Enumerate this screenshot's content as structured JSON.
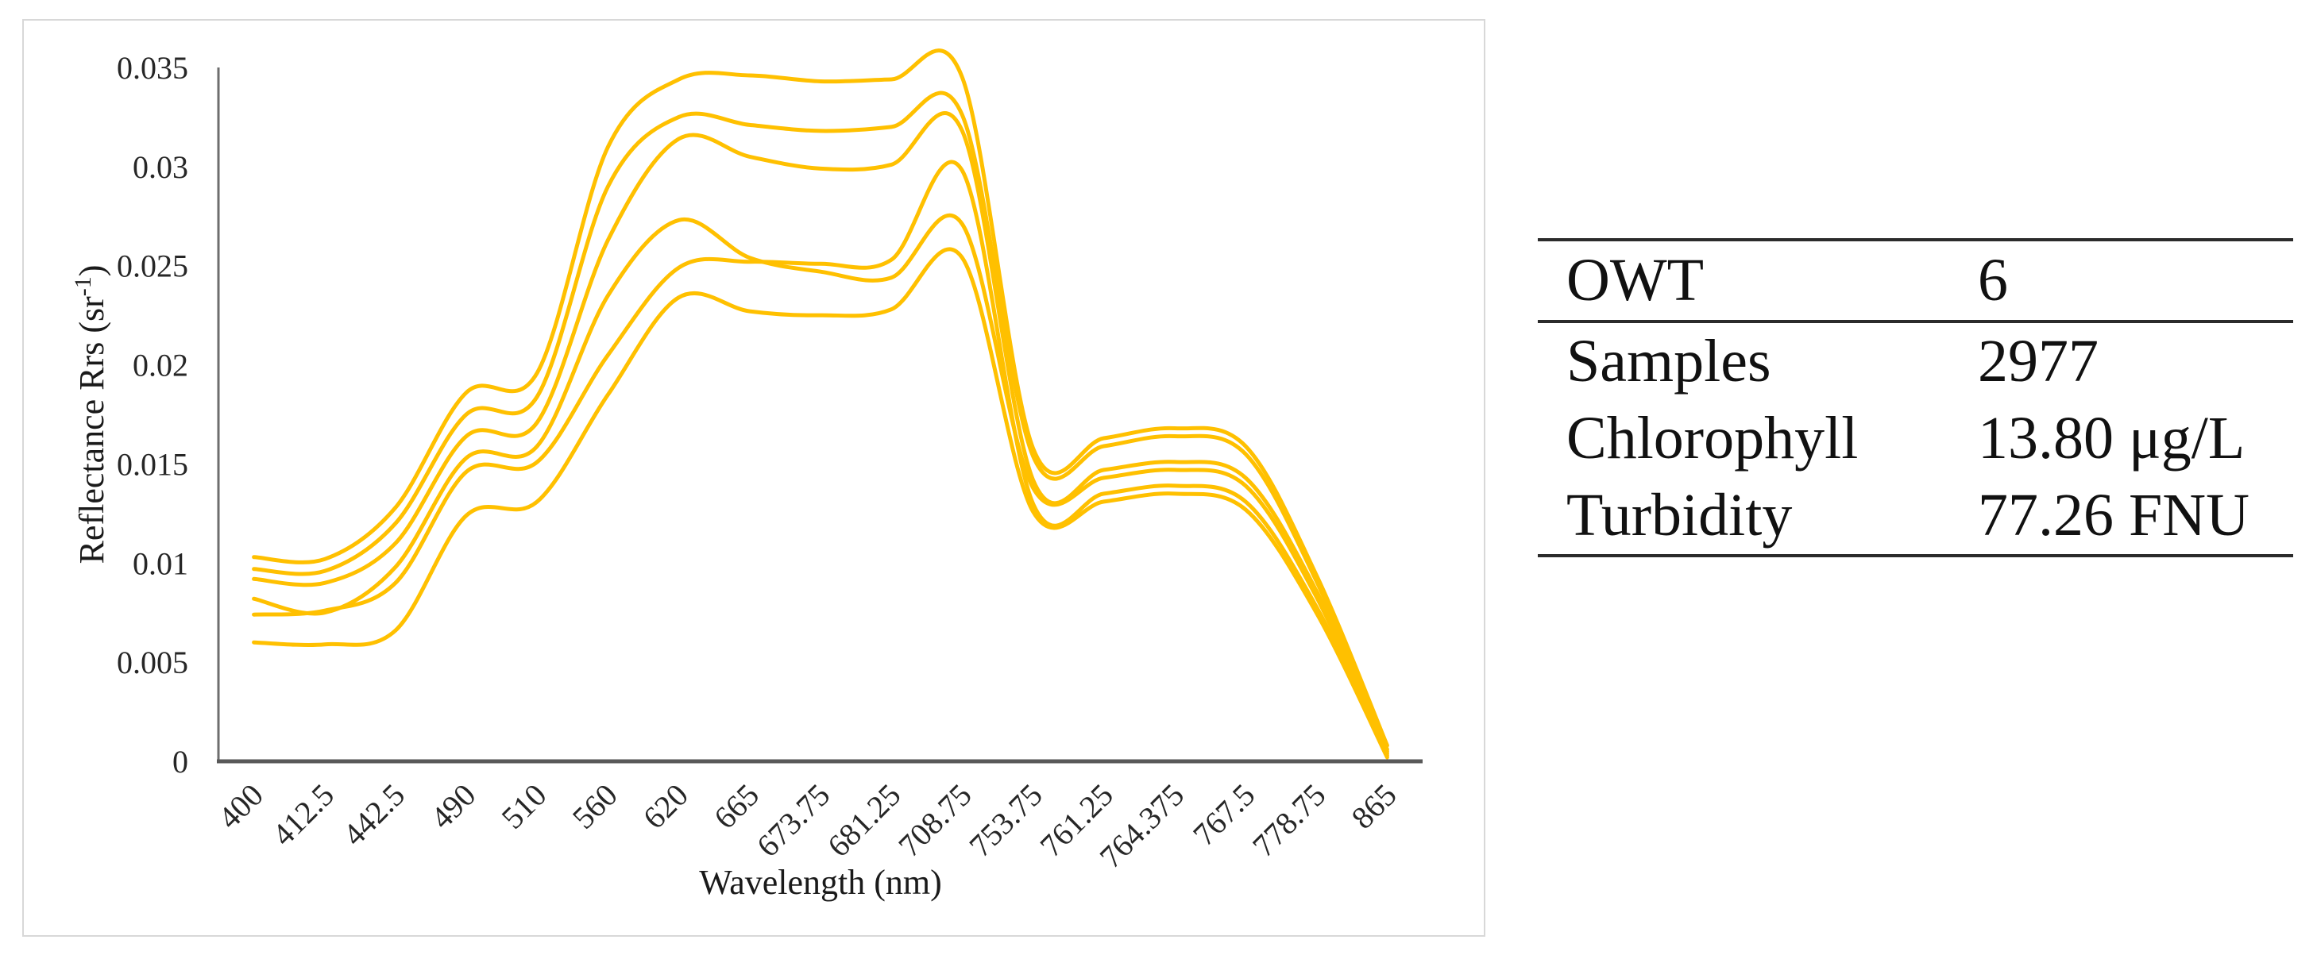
{
  "chart_data": {
    "type": "line",
    "title": "",
    "xlabel": "Wavelength (nm)",
    "ylabel": "Reflectance Rrs (sr⁻¹)",
    "ylabel_parts": {
      "base": "Reflectance Rrs (sr",
      "sup": "-1",
      "end": ")"
    },
    "categories": [
      "400",
      "412.5",
      "442.5",
      "490",
      "510",
      "560",
      "620",
      "665",
      "673.75",
      "681.25",
      "708.75",
      "753.75",
      "761.25",
      "764.375",
      "767.5",
      "778.75",
      "865"
    ],
    "yticks": [
      "0",
      "0.005",
      "0.01",
      "0.015",
      "0.02",
      "0.025",
      "0.03",
      "0.035"
    ],
    "ylim": [
      0,
      0.035
    ],
    "grid": false,
    "legend": false,
    "line_color": "#FFC000",
    "y_axis_color": "#6e6e6e",
    "x_axis_color": "#595959",
    "series": [
      {
        "values": [
          0.0103,
          0.0102,
          0.0128,
          0.0186,
          0.0196,
          0.031,
          0.0344,
          0.0346,
          0.0343,
          0.0344,
          0.0345,
          0.0158,
          0.0163,
          0.0168,
          0.0159,
          0.0094,
          0.0008
        ]
      },
      {
        "values": [
          0.0097,
          0.0096,
          0.012,
          0.0175,
          0.0184,
          0.029,
          0.0325,
          0.0321,
          0.0318,
          0.032,
          0.0326,
          0.0154,
          0.0159,
          0.0164,
          0.0155,
          0.0091,
          0.0006
        ]
      },
      {
        "values": [
          0.0092,
          0.009,
          0.011,
          0.0164,
          0.0171,
          0.0263,
          0.0314,
          0.0305,
          0.0299,
          0.0301,
          0.0318,
          0.0142,
          0.0147,
          0.0151,
          0.0143,
          0.0086,
          0.0005
        ]
      },
      {
        "values": [
          0.0082,
          0.0075,
          0.0098,
          0.0153,
          0.0159,
          0.0235,
          0.0273,
          0.0254,
          0.0247,
          0.0244,
          0.0271,
          0.0138,
          0.0143,
          0.0147,
          0.0139,
          0.0083,
          0.0004
        ]
      },
      {
        "values": [
          0.0074,
          0.0076,
          0.009,
          0.0146,
          0.0151,
          0.0205,
          0.0249,
          0.0252,
          0.0251,
          0.0253,
          0.0298,
          0.013,
          0.0135,
          0.0139,
          0.0131,
          0.0078,
          0.0003
        ]
      },
      {
        "values": [
          0.006,
          0.0059,
          0.0066,
          0.0124,
          0.0131,
          0.0185,
          0.0234,
          0.0227,
          0.0225,
          0.0228,
          0.0254,
          0.0126,
          0.0131,
          0.0135,
          0.0127,
          0.0075,
          0.0002
        ]
      }
    ]
  },
  "side_table": {
    "rows": [
      {
        "label": "OWT",
        "value": "6"
      },
      {
        "label": "Samples",
        "value": "2977"
      },
      {
        "label": "Chlorophyll",
        "value": "13.80 μg/L"
      },
      {
        "label": "Turbidity",
        "value": "77.26 FNU"
      }
    ]
  }
}
